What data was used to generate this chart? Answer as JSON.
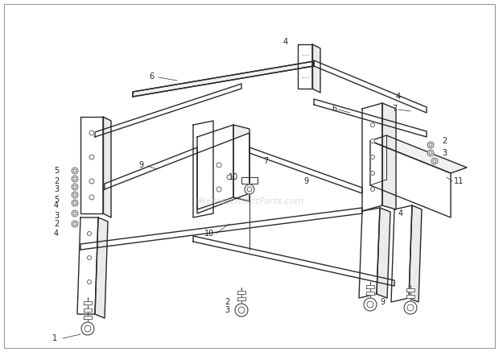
{
  "bg_color": "#ffffff",
  "line_color": "#2a2a2a",
  "text_color": "#222222",
  "watermark": "eReplacementParts.com",
  "fig_width": 6.2,
  "fig_height": 4.37,
  "dpi": 100
}
